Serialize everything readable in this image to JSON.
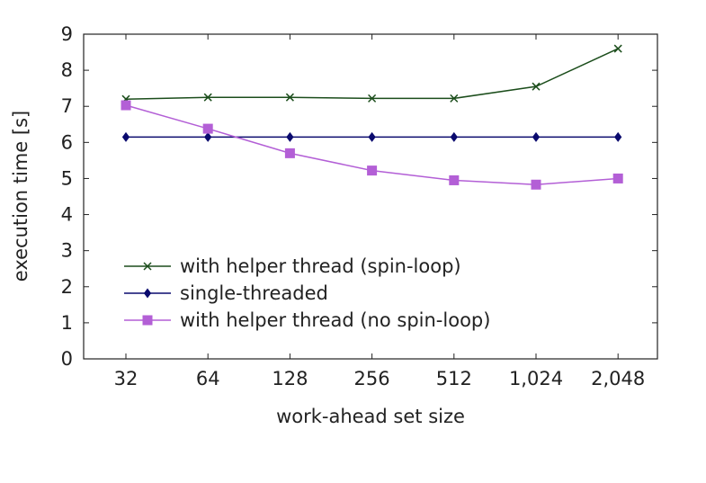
{
  "chart_data": {
    "type": "line",
    "xlabel": "work-ahead set size",
    "ylabel": "execution time [s]",
    "categories": [
      "32",
      "64",
      "128",
      "256",
      "512",
      "1,024",
      "2,048"
    ],
    "ylim": [
      0,
      9
    ],
    "yticks": [
      "0",
      "1",
      "2",
      "3",
      "4",
      "5",
      "6",
      "7",
      "8",
      "9"
    ],
    "grid": false,
    "legend_position": "bottom-left",
    "series": [
      {
        "name": "with helper thread (spin-loop)",
        "color": "#1b4d1b",
        "marker": "x",
        "values": [
          7.2,
          7.25,
          7.25,
          7.22,
          7.22,
          7.55,
          8.6
        ]
      },
      {
        "name": "single-threaded",
        "color": "#0a0a6e",
        "marker": "diamond",
        "values": [
          6.15,
          6.15,
          6.15,
          6.15,
          6.15,
          6.15,
          6.15
        ]
      },
      {
        "name": "with helper thread (no spin-loop)",
        "color": "#b35fd6",
        "marker": "square",
        "values": [
          7.03,
          6.38,
          5.7,
          5.22,
          4.95,
          4.83,
          5.0
        ]
      }
    ]
  }
}
